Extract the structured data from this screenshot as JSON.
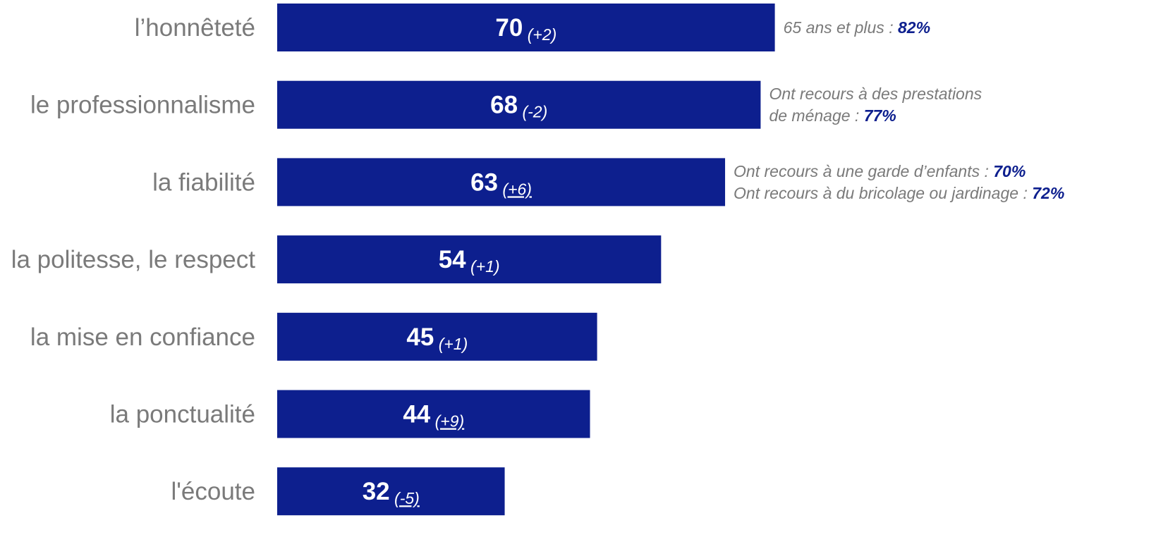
{
  "colors": {
    "bar": "#0d1f8e",
    "label": "#7a7a7a",
    "highlight": "#0d1f8e",
    "bar_text": "#ffffff"
  },
  "chart_data": {
    "type": "bar",
    "orientation": "horizontal",
    "title": "",
    "xlabel": "",
    "ylabel": "",
    "xlim": [
      0,
      100
    ],
    "grid": false,
    "legend": "none",
    "categories": [
      "l’honnêteté",
      "le professionnalisme",
      "la fiabilité",
      "la politesse, le respect",
      "la mise en confiance",
      "la ponctualité",
      "l'écoute"
    ],
    "values": [
      70,
      68,
      63,
      54,
      45,
      44,
      32
    ],
    "value_labels": [
      "70",
      "68",
      "63",
      "54",
      "45",
      "44",
      "32"
    ],
    "changes": [
      {
        "text": "(+2)",
        "underlined": false
      },
      {
        "text": "(-2)",
        "underlined": false
      },
      {
        "text": "(+6)",
        "underlined": true
      },
      {
        "text": "(+1)",
        "underlined": false
      },
      {
        "text": "(+1)",
        "underlined": false
      },
      {
        "text": "(+9)",
        "underlined": true
      },
      {
        "text": "(-5)",
        "underlined": true
      }
    ],
    "annotations": [
      {
        "bar": 0,
        "lines": [
          {
            "text": "65 ans et plus : ",
            "value": "82%"
          }
        ]
      },
      {
        "bar": 1,
        "lines": [
          {
            "text": "Ont recours à des prestations",
            "value": ""
          },
          {
            "text": "de ménage : ",
            "value": "77%"
          }
        ]
      },
      {
        "bar": 2,
        "lines": [
          {
            "text": "Ont recours à une garde d’enfants : ",
            "value": "70%"
          },
          {
            "text": "Ont recours à du bricolage ou jardinage : ",
            "value": "72%"
          }
        ]
      }
    ]
  }
}
